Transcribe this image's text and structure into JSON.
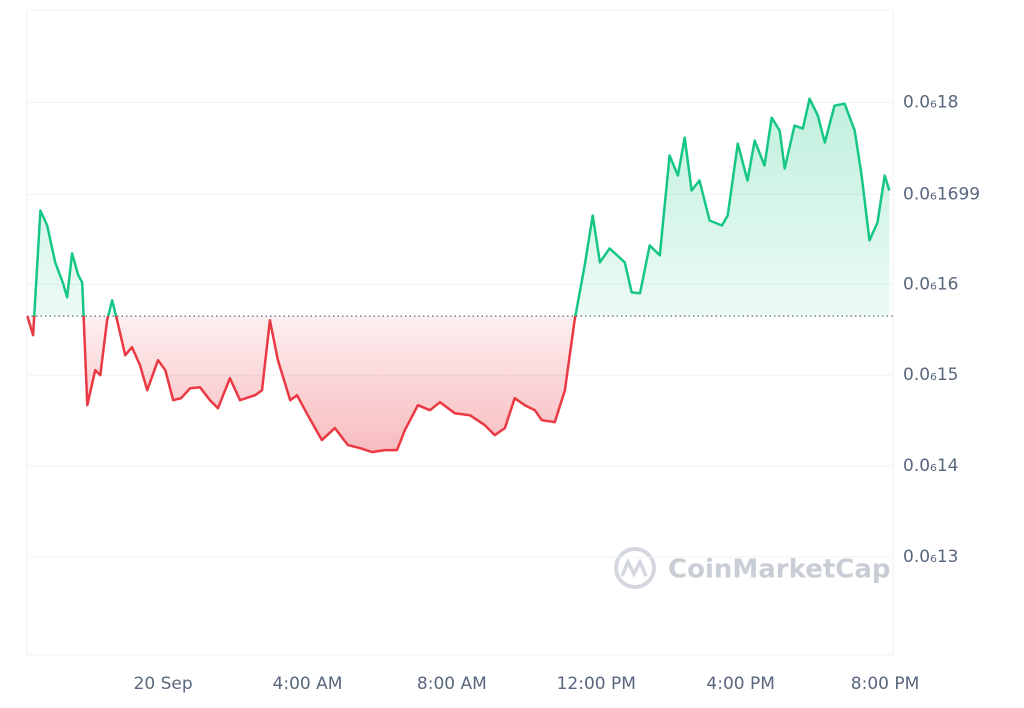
{
  "chart_data": {
    "type": "line",
    "watermark": "CoinMarketCap",
    "baseline": 1.565e-07,
    "up_color": "#16c784",
    "down_color": "#ea3943",
    "grid": true,
    "xlim": [
      -3.77,
      20.22
    ],
    "xticks": [
      {
        "value": 0,
        "label": "20 Sep"
      },
      {
        "value": 4,
        "label": "4:00 AM"
      },
      {
        "value": 8,
        "label": "8:00 AM"
      },
      {
        "value": 12,
        "label": "12:00 PM"
      },
      {
        "value": 16,
        "label": "4:00 PM"
      },
      {
        "value": 20,
        "label": "8:00 PM"
      }
    ],
    "ylim": [
      1.192e-07,
      1.902e-07
    ],
    "yticks": [
      {
        "value": 1.3e-07,
        "label": "0.0₆13"
      },
      {
        "value": 1.4e-07,
        "label": "0.0₆14"
      },
      {
        "value": 1.5e-07,
        "label": "0.0₆15"
      },
      {
        "value": 1.6e-07,
        "label": "0.0₆16"
      },
      {
        "value": 1.699e-07,
        "label": "0.0₆1699"
      },
      {
        "value": 1.8e-07,
        "label": "0.0₆18"
      }
    ],
    "x": [
      -3.76,
      -3.6,
      -3.4,
      -3.21,
      -2.99,
      -2.77,
      -2.66,
      -2.52,
      -2.35,
      -2.24,
      -2.1,
      -1.88,
      -1.74,
      -1.55,
      -1.41,
      -1.24,
      -1.05,
      -0.86,
      -0.64,
      -0.44,
      -0.14,
      0.06,
      0.28,
      0.5,
      0.75,
      1.02,
      1.3,
      1.52,
      1.85,
      2.13,
      2.55,
      2.74,
      2.96,
      3.18,
      3.52,
      3.71,
      4.01,
      4.4,
      4.76,
      5.12,
      5.45,
      5.79,
      6.15,
      6.48,
      6.7,
      7.06,
      7.39,
      7.67,
      8.08,
      8.5,
      8.91,
      9.19,
      9.47,
      9.74,
      10.02,
      10.3,
      10.49,
      10.85,
      11.13,
      11.4,
      11.68,
      11.9,
      12.1,
      12.37,
      12.79,
      12.98,
      13.21,
      13.48,
      13.76,
      14.03,
      14.26,
      14.45,
      14.64,
      14.86,
      15.14,
      15.48,
      15.64,
      15.92,
      16.19,
      16.39,
      16.66,
      16.86,
      17.08,
      17.22,
      17.49,
      17.72,
      17.91,
      18.14,
      18.33,
      18.6,
      18.88,
      19.16,
      19.35,
      19.57,
      19.79,
      19.99,
      20.12
    ],
    "values": [
      1.5648e-07,
      1.544e-07,
      1.6813e-07,
      1.6648e-07,
      1.6242e-07,
      1.6011e-07,
      1.5857e-07,
      1.6341e-07,
      1.6099e-07,
      1.6022e-07,
      1.467e-07,
      1.5055e-07,
      1.5e-07,
      1.5604e-07,
      1.5824e-07,
      1.5549e-07,
      1.522e-07,
      1.5308e-07,
      1.511e-07,
      1.4835e-07,
      1.5165e-07,
      1.5055e-07,
      1.4725e-07,
      1.4747e-07,
      1.4857e-07,
      1.4868e-07,
      1.4725e-07,
      1.4637e-07,
      1.4967e-07,
      1.4725e-07,
      1.478e-07,
      1.4835e-07,
      1.5604e-07,
      1.5165e-07,
      1.4725e-07,
      1.478e-07,
      1.456e-07,
      1.4286e-07,
      1.4418e-07,
      1.4231e-07,
      1.4198e-07,
      1.4154e-07,
      1.4176e-07,
      1.4176e-07,
      1.4396e-07,
      1.467e-07,
      1.4615e-07,
      1.4703e-07,
      1.4582e-07,
      1.456e-07,
      1.4451e-07,
      1.4341e-07,
      1.4418e-07,
      1.4747e-07,
      1.467e-07,
      1.4615e-07,
      1.4505e-07,
      1.4484e-07,
      1.4835e-07,
      1.5604e-07,
      1.6209e-07,
      1.6758e-07,
      1.6242e-07,
      1.6396e-07,
      1.6242e-07,
      1.5912e-07,
      1.5901e-07,
      1.6429e-07,
      1.6319e-07,
      1.7418e-07,
      1.7198e-07,
      1.7615e-07,
      1.7033e-07,
      1.7143e-07,
      1.6703e-07,
      1.6648e-07,
      1.6758e-07,
      1.7549e-07,
      1.7143e-07,
      1.7582e-07,
      1.7308e-07,
      1.7835e-07,
      1.7692e-07,
      1.7275e-07,
      1.7747e-07,
      1.7714e-07,
      1.8044e-07,
      1.7857e-07,
      1.756e-07,
      1.7967e-07,
      1.7989e-07,
      1.7692e-07,
      1.7198e-07,
      1.6484e-07,
      1.6681e-07,
      1.7198e-07,
      1.7033e-07
    ]
  }
}
